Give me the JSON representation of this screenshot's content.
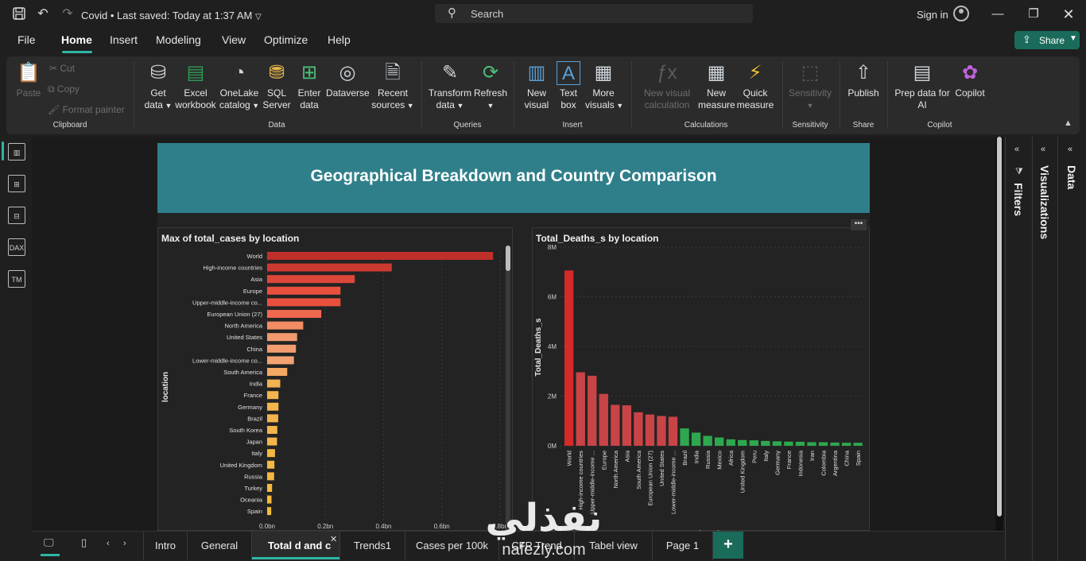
{
  "titlebar": {
    "doc_title": "Covid • Last saved: Today at 1:37 AM",
    "search_placeholder": "Search",
    "sign_in": "Sign in"
  },
  "menu": {
    "items": [
      "File",
      "Home",
      "Insert",
      "Modeling",
      "View",
      "Optimize",
      "Help"
    ],
    "active": "Home",
    "share_label": "Share"
  },
  "ribbon": {
    "clipboard": {
      "paste": "Paste",
      "cut": "Cut",
      "copy": "Copy",
      "format_painter": "Format painter",
      "group": "Clipboard"
    },
    "data": {
      "get_data": [
        "Get",
        "data"
      ],
      "excel": [
        "Excel",
        "workbook"
      ],
      "onelake": [
        "OneLake",
        "catalog"
      ],
      "sql": [
        "SQL",
        "Server"
      ],
      "enter": [
        "Enter",
        "data"
      ],
      "dataverse": "Dataverse",
      "recent": [
        "Recent",
        "sources"
      ],
      "group": "Data"
    },
    "queries": {
      "transform": [
        "Transform",
        "data"
      ],
      "refresh": "Refresh",
      "group": "Queries"
    },
    "insert": {
      "new_visual": [
        "New",
        "visual"
      ],
      "text_box": [
        "Text",
        "box"
      ],
      "more_visuals": [
        "More",
        "visuals"
      ],
      "group": "Insert"
    },
    "calculations": {
      "new_visual_calc": [
        "New visual",
        "calculation"
      ],
      "new_measure": [
        "New",
        "measure"
      ],
      "quick_measure": [
        "Quick",
        "measure"
      ],
      "group": "Calculations"
    },
    "sensitivity": {
      "label": "Sensitivity",
      "group": "Sensitivity"
    },
    "share": {
      "publish": "Publish",
      "group": "Share"
    },
    "copilot": {
      "prep": [
        "Prep data for",
        "AI"
      ],
      "copilot": "Copilot",
      "group": "Copilot"
    }
  },
  "report": {
    "banner_title": "Geographical Breakdown and Country Comparison"
  },
  "panes": {
    "filters": "Filters",
    "visualizations": "Visualizations",
    "data": "Data"
  },
  "tabs": [
    "Intro",
    "General",
    "Total d and c",
    "Trends1",
    "Cases per 100k",
    "CFR Trend",
    "Tabel view",
    "Page 1"
  ],
  "active_tab": "Total d and c",
  "watermark": {
    "arabic": "نفذلي",
    "latin": "nafezly.com"
  },
  "colors": {
    "accent": "#2fb5a6",
    "banner": "#2f7f8a",
    "share": "#1b6b5b"
  },
  "chart_data": [
    {
      "type": "bar",
      "orientation": "horizontal",
      "title": "Max of total_cases by location",
      "ylabel": "location",
      "xlabel": "",
      "xticks": [
        "0.0bn",
        "0.2bn",
        "0.4bn",
        "0.6bn",
        "0.8bn"
      ],
      "xlim": [
        0,
        0.8
      ],
      "categories": [
        "World",
        "High-income countries",
        "Asia",
        "Europe",
        "Upper-middle-income co...",
        "European Union (27)",
        "North America",
        "United States",
        "China",
        "Lower-middle-income co...",
        "South America",
        "India",
        "France",
        "Germany",
        "Brazil",
        "South Korea",
        "Japan",
        "Italy",
        "United Kingdom",
        "Russia",
        "Turkey",
        "Oceania",
        "Spain"
      ],
      "values": [
        0.776,
        0.428,
        0.301,
        0.252,
        0.252,
        0.186,
        0.124,
        0.103,
        0.099,
        0.092,
        0.069,
        0.045,
        0.039,
        0.039,
        0.038,
        0.035,
        0.034,
        0.027,
        0.025,
        0.024,
        0.017,
        0.015,
        0.014
      ],
      "color_scale": [
        "#c0302a",
        "#ef5542",
        "#f2a273",
        "#f5c12e"
      ]
    },
    {
      "type": "bar",
      "orientation": "vertical",
      "title": "Total_Deaths_s by location",
      "ylabel": "Total_Deaths_s",
      "xlabel": "location",
      "yticks": [
        "0M",
        "2M",
        "4M",
        "6M",
        "8M"
      ],
      "ylim": [
        0,
        8000000
      ],
      "categories": [
        "World",
        "High-income countries",
        "Upper-middle-income ...",
        "Europe",
        "North America",
        "Asia",
        "South America",
        "European Union (27)",
        "United States",
        "Lower-middle-income ...",
        "Brazil",
        "India",
        "Russia",
        "Mexico",
        "Africa",
        "United Kingdom",
        "Peru",
        "Italy",
        "Germany",
        "France",
        "Indonesia",
        "Iran",
        "Colombia",
        "Argentina",
        "China",
        "Spain"
      ],
      "values": [
        7060000,
        2960000,
        2820000,
        2090000,
        1650000,
        1630000,
        1350000,
        1260000,
        1200000,
        1170000,
        700000,
        530000,
        400000,
        335000,
        260000,
        232000,
        220000,
        196000,
        180000,
        168000,
        162000,
        146000,
        144000,
        131000,
        122000,
        121000
      ],
      "colors": {
        "red": "#c94446",
        "red_max": "#d42a2a",
        "green": "#2ea84e"
      }
    }
  ]
}
